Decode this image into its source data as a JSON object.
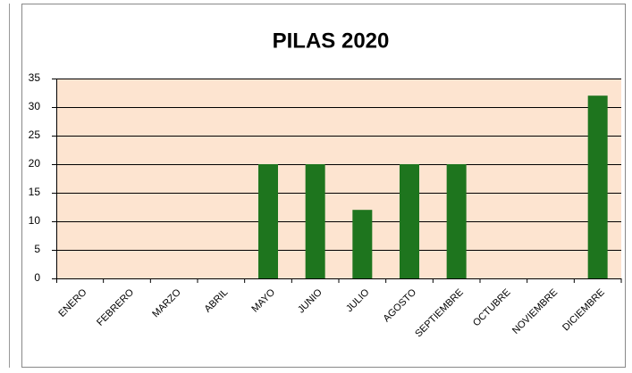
{
  "chart_data": {
    "type": "bar",
    "title": "PILAS 2020",
    "categories": [
      "ENERO",
      "FEBRERO",
      "MARZO",
      "ABRIL",
      "MAYO",
      "JUNIO",
      "JULIO",
      "AGOSTO",
      "SEPTIEMBRE",
      "OCTUBRE",
      "NOVIEMBRE",
      "DICIEMBRE"
    ],
    "values": [
      0,
      0,
      0,
      0,
      20,
      20,
      12,
      20,
      20,
      0,
      0,
      32
    ],
    "color": "#1e751e",
    "ylim": [
      0,
      35
    ],
    "yticks": [
      0,
      5,
      10,
      15,
      20,
      25,
      30,
      35
    ],
    "grid": true
  }
}
